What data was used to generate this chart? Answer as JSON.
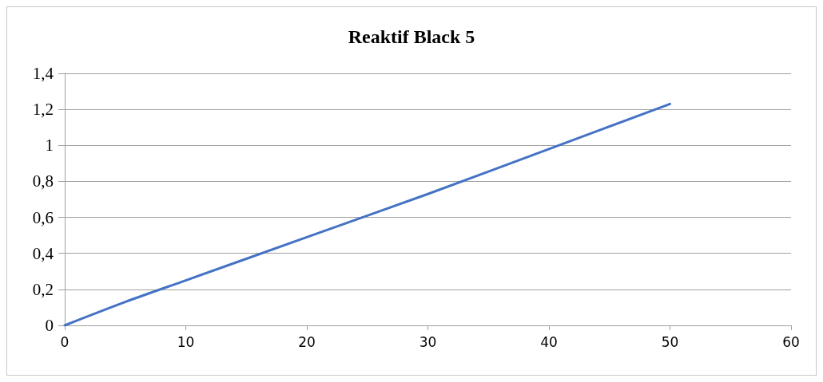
{
  "chart_data": {
    "type": "line",
    "title": "Reaktif Black 5",
    "x": [
      0,
      5,
      10,
      20,
      30,
      40,
      50
    ],
    "series": [
      {
        "color": "#4472c4",
        "values": [
          0,
          0.13,
          0.25,
          0.49,
          0.73,
          0.98,
          1.23
        ]
      }
    ],
    "xlim": [
      0,
      60
    ],
    "xticks": [
      0,
      10,
      20,
      30,
      40,
      50,
      60
    ],
    "ylim": [
      0,
      1.4
    ],
    "yticks": [
      0,
      {
        "value": 0.2,
        "label": "0,2"
      },
      {
        "value": 0.4,
        "label": "0,4"
      },
      {
        "value": 0.6,
        "label": "0,6"
      },
      {
        "value": 0.8,
        "label": "0,8"
      },
      1,
      {
        "value": 1.2,
        "label": "1,2"
      },
      {
        "value": 1.4,
        "label": "1,4"
      }
    ],
    "grid": "y",
    "marker": "none",
    "line_style": "solid"
  }
}
